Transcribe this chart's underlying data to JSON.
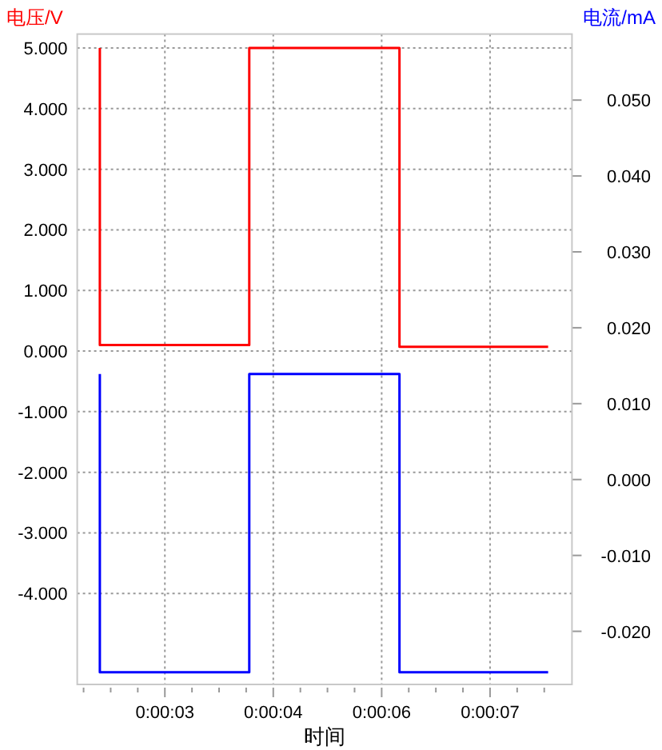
{
  "chart_data": {
    "type": "line",
    "ylabel": "电压/V",
    "y2label": "电流/mA",
    "xlabel": "时间",
    "xlim": [
      1.668,
      8.058
    ],
    "xticks": [
      {
        "value": 1.75,
        "label": null
      },
      {
        "value": 2.1,
        "label": null
      },
      {
        "value": 2.45,
        "label": null
      },
      {
        "value": 2.8,
        "label": "0:00:03"
      },
      {
        "value": 3.15,
        "label": null
      },
      {
        "value": 3.5,
        "label": null
      },
      {
        "value": 3.85,
        "label": null
      },
      {
        "value": 4.2,
        "label": "0:00:04"
      },
      {
        "value": 4.55,
        "label": null
      },
      {
        "value": 4.9,
        "label": null
      },
      {
        "value": 5.25,
        "label": null
      },
      {
        "value": 5.6,
        "label": "0:00:06"
      },
      {
        "value": 5.95,
        "label": null
      },
      {
        "value": 6.3,
        "label": null
      },
      {
        "value": 6.65,
        "label": null
      },
      {
        "value": 7.0,
        "label": "0:00:07"
      },
      {
        "value": 7.35,
        "label": null
      },
      {
        "value": 7.7,
        "label": null
      }
    ],
    "ylim": [
      -5.5,
      5.23
    ],
    "yticks": [
      {
        "value": 5,
        "label": "5.000"
      },
      {
        "value": 4,
        "label": "4.000"
      },
      {
        "value": 3,
        "label": "3.000"
      },
      {
        "value": 2,
        "label": "2.000"
      },
      {
        "value": 1,
        "label": "1.000"
      },
      {
        "value": 0,
        "label": "0.000"
      },
      {
        "value": -1,
        "label": "-1.000"
      },
      {
        "value": -2,
        "label": "-2.000"
      },
      {
        "value": -3,
        "label": "-3.000"
      },
      {
        "value": -4,
        "label": "-4.000"
      }
    ],
    "y2lim": [
      -0.027,
      0.0587
    ],
    "y2ticks": [
      {
        "value": 0.05,
        "label": "0.050"
      },
      {
        "value": 0.04,
        "label": "0.040"
      },
      {
        "value": 0.03,
        "label": "0.030"
      },
      {
        "value": 0.02,
        "label": "0.020"
      },
      {
        "value": 0.01,
        "label": "0.010"
      },
      {
        "value": 0,
        "label": "0.000"
      },
      {
        "value": -0.01,
        "label": "-0.010"
      },
      {
        "value": -0.02,
        "label": "-0.020"
      }
    ],
    "grid": true,
    "series": [
      {
        "color": "#ff0000",
        "x": [
          1.96,
          1.96,
          3.89,
          3.89,
          5.83,
          5.83,
          7.75
        ],
        "values": [
          5.0,
          0.1,
          0.1,
          5.0,
          5.0,
          0.07,
          0.07
        ]
      },
      {
        "color": "#0000ff",
        "axis": "y2",
        "x": [
          1.96,
          1.96,
          3.89,
          3.89,
          5.83,
          5.83,
          7.75
        ],
        "values": [
          0.0139,
          -0.0254,
          -0.0254,
          0.0139,
          0.0139,
          -0.0254,
          -0.0254
        ]
      }
    ]
  }
}
